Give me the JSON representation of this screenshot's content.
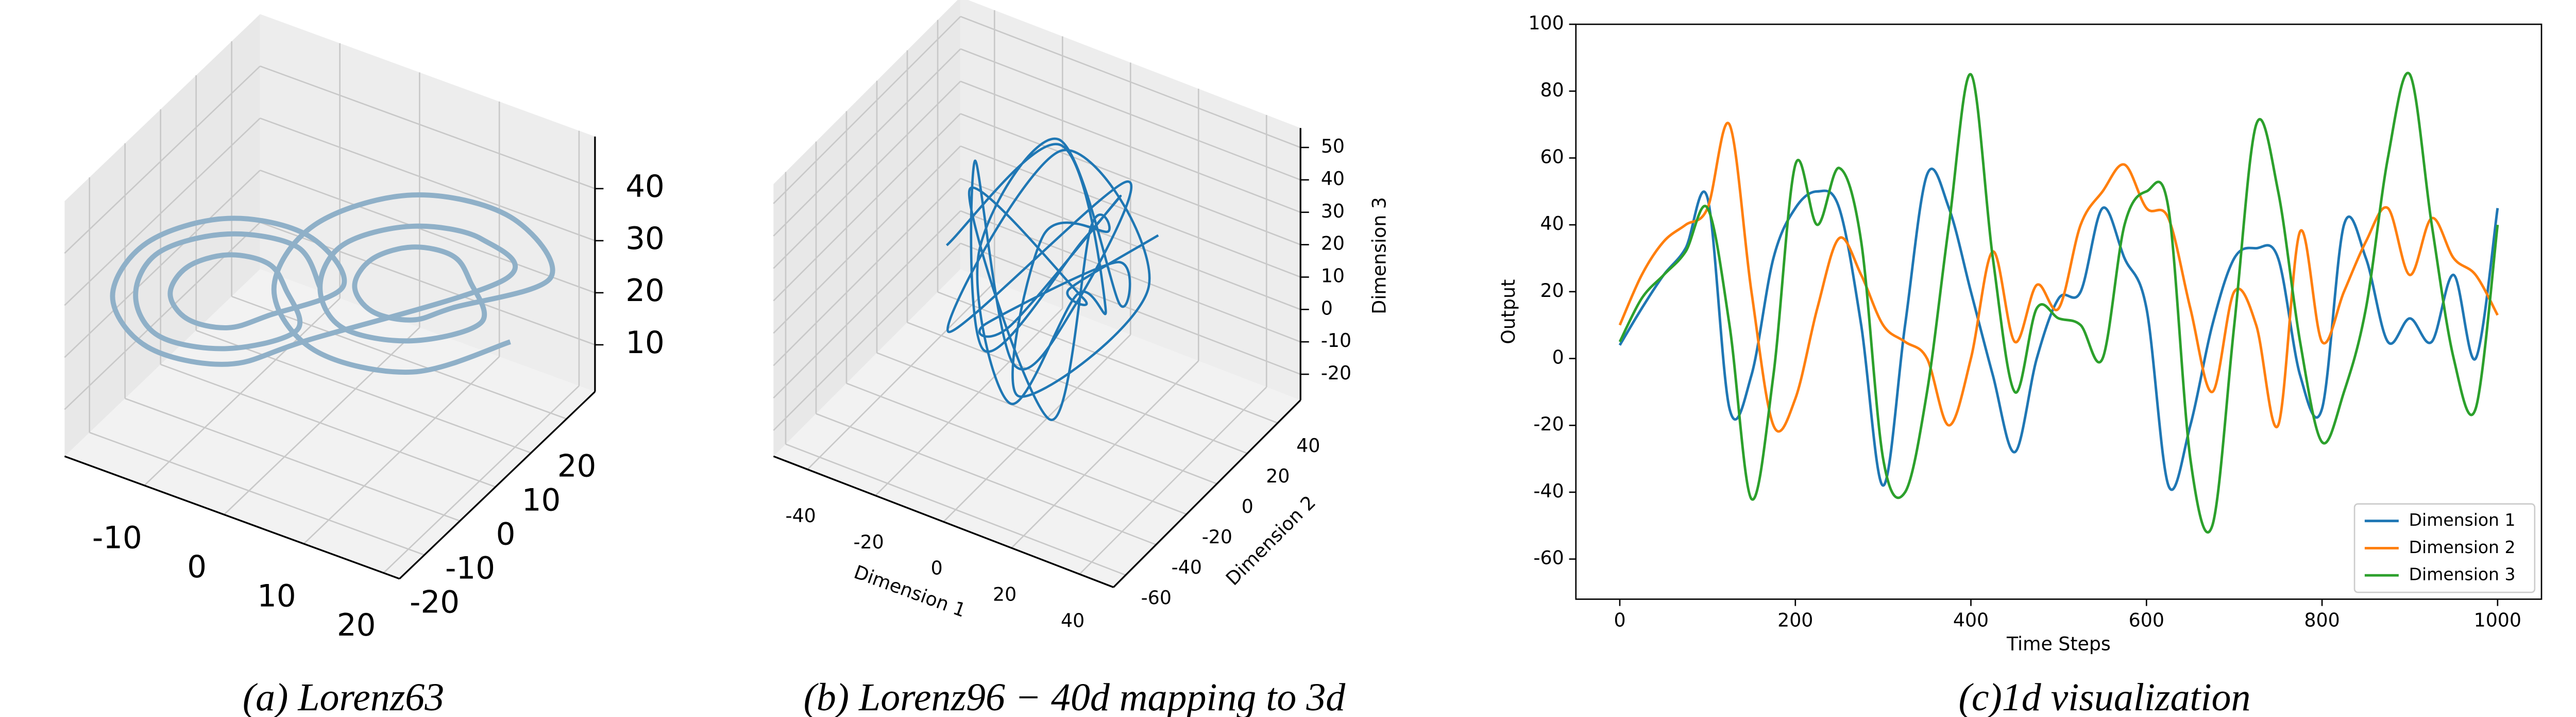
{
  "chart_data": [
    {
      "type": "line3d",
      "caption": "(a) Lorenz63",
      "series": [
        {
          "color": "#8fb0c8",
          "x": [
            0,
            -2,
            -8,
            -14,
            -16,
            -14,
            -8,
            -2,
            -3,
            -4.5,
            -8,
            -11.5,
            -13,
            -11.5,
            -8,
            -4.5,
            2,
            -1,
            -8,
            -15,
            -18,
            -15,
            -8,
            -1,
            16,
            14,
            8,
            2,
            0,
            2,
            8,
            14,
            13,
            11.5,
            8,
            4.5,
            3,
            4.5,
            8,
            11.5,
            20,
            16.5,
            8,
            -0.5,
            -4,
            -0.5,
            8,
            16.5
          ],
          "y": [
            0,
            -2,
            -8,
            -14,
            -16,
            -14,
            -8,
            -2,
            -3,
            -4.5,
            -8,
            -11.5,
            -13,
            -11.5,
            -8,
            -4.5,
            2,
            -1,
            -8,
            -15,
            -18,
            -15,
            -8,
            -1,
            16,
            14,
            8,
            2,
            0,
            2,
            8,
            14,
            13,
            11.5,
            8,
            4.5,
            3,
            4.5,
            8,
            11.5,
            20,
            16.5,
            8,
            -0.5,
            -4,
            -0.5,
            8,
            16.5
          ],
          "z": [
            27,
            35,
            38,
            35,
            27,
            19,
            16,
            19,
            27,
            32,
            34,
            32,
            27,
            22,
            20,
            22,
            27,
            37,
            41,
            37,
            27,
            17,
            13,
            17,
            27,
            35,
            38,
            35,
            27,
            19,
            16,
            19,
            27,
            32,
            34,
            32,
            27,
            22,
            20,
            22,
            27,
            39,
            44,
            39,
            27,
            15,
            10,
            15
          ]
        }
      ],
      "xlim": [
        -20,
        22
      ],
      "ylim": [
        -27,
        28
      ],
      "zlim": [
        1,
        50
      ],
      "xticks": [
        -10,
        0,
        10,
        20
      ],
      "yticks": [
        -20,
        -10,
        0,
        10,
        20
      ],
      "zticks": [
        10,
        20,
        30,
        40
      ]
    },
    {
      "type": "line3d",
      "caption": "(b) Lorenz96 − 40d mapping to 3d",
      "xlabel": "Dimension 1",
      "ylabel": "Dimension 2",
      "zlabel": "Dimension 3",
      "series": [
        {
          "color": "#1f77b4",
          "x": [
            -25,
            -5,
            15,
            20,
            5,
            -20,
            -10,
            10,
            25,
            0,
            -15,
            5,
            20,
            -5,
            -30,
            -10,
            15,
            10,
            -20,
            0,
            30,
            5,
            -10,
            20,
            -5,
            10,
            -25,
            15,
            0,
            35
          ],
          "y": [
            -10,
            20,
            5,
            -25,
            -35,
            0,
            30,
            25,
            -10,
            -40,
            10,
            35,
            -20,
            -30,
            20,
            0,
            -15,
            30,
            -20,
            10,
            0,
            -30,
            20,
            -5,
            40,
            -20,
            5,
            -10,
            15,
            -5
          ],
          "z": [
            20,
            45,
            10,
            30,
            -5,
            15,
            40,
            0,
            35,
            20,
            -10,
            25,
            45,
            5,
            30,
            -15,
            20,
            35,
            0,
            50,
            25,
            -5,
            15,
            40,
            10,
            -15,
            30,
            20,
            5,
            45
          ]
        }
      ],
      "xlim": [
        -50,
        50
      ],
      "ylim": [
        -68,
        55
      ],
      "zlim": [
        -28,
        56
      ],
      "xticks": [
        -40,
        -20,
        0,
        20,
        40
      ],
      "yticks": [
        -60,
        -40,
        -20,
        0,
        20,
        40
      ],
      "zticks": [
        -20,
        -10,
        0,
        10,
        20,
        30,
        40,
        50
      ]
    },
    {
      "type": "line",
      "caption": "(c)1d visualization",
      "xlabel": "Time Steps",
      "ylabel": "Output",
      "x": [
        0,
        25,
        50,
        75,
        100,
        125,
        150,
        175,
        200,
        225,
        250,
        275,
        300,
        325,
        350,
        375,
        400,
        425,
        450,
        475,
        500,
        525,
        550,
        575,
        600,
        625,
        650,
        675,
        700,
        725,
        750,
        775,
        800,
        825,
        850,
        875,
        900,
        925,
        950,
        975,
        1000
      ],
      "series": [
        {
          "name": "Dimension 1",
          "color": "#1f77b4",
          "values": [
            4,
            15,
            25,
            33,
            48,
            -15,
            -5,
            30,
            45,
            50,
            45,
            10,
            -38,
            10,
            55,
            45,
            20,
            -5,
            -28,
            0,
            18,
            20,
            45,
            30,
            15,
            -38,
            -20,
            10,
            30,
            33,
            30,
            -5,
            -15,
            40,
            30,
            5,
            12,
            5,
            25,
            0,
            45
          ]
        },
        {
          "name": "Dimension 2",
          "color": "#ff7f0e",
          "values": [
            10,
            25,
            35,
            40,
            45,
            70,
            20,
            -20,
            -12,
            15,
            36,
            25,
            10,
            5,
            0,
            -20,
            0,
            32,
            5,
            22,
            15,
            40,
            50,
            58,
            45,
            42,
            15,
            -10,
            20,
            10,
            -20,
            38,
            5,
            20,
            35,
            45,
            25,
            42,
            30,
            25,
            13
          ]
        },
        {
          "name": "Dimension 3",
          "color": "#2ca02c",
          "values": [
            5,
            18,
            25,
            32,
            45,
            10,
            -42,
            -5,
            58,
            40,
            57,
            35,
            -30,
            -40,
            -10,
            40,
            85,
            30,
            -10,
            15,
            12,
            10,
            0,
            40,
            50,
            45,
            -30,
            -50,
            10,
            70,
            50,
            5,
            -25,
            -10,
            15,
            60,
            85,
            40,
            0,
            -15,
            40
          ]
        }
      ],
      "xlim": [
        -50,
        1050
      ],
      "ylim": [
        -72,
        100
      ],
      "xticks": [
        0,
        200,
        400,
        600,
        800,
        1000
      ],
      "yticks": [
        -60,
        -40,
        -20,
        0,
        20,
        40,
        60,
        80,
        100
      ],
      "legend": "lower right"
    }
  ]
}
